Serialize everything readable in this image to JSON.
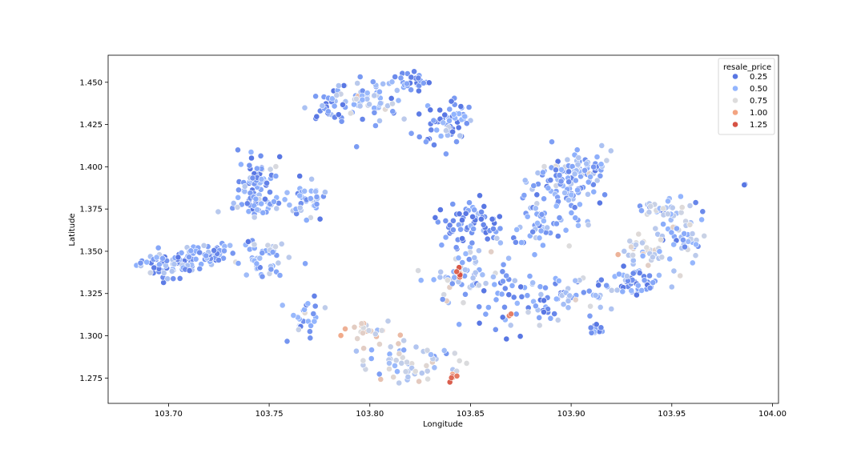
{
  "chart_data": {
    "type": "scatter",
    "xlabel": "Longitude",
    "ylabel": "Latitude",
    "xlim": [
      103.67,
      104.003
    ],
    "ylim": [
      1.26,
      1.466
    ],
    "xticks": [
      103.7,
      103.75,
      103.8,
      103.85,
      103.9,
      103.95,
      104.0
    ],
    "xtick_labels": [
      "103.70",
      "103.75",
      "103.80",
      "103.85",
      "103.90",
      "103.95",
      "104.00"
    ],
    "yticks": [
      1.275,
      1.3,
      1.325,
      1.35,
      1.375,
      1.4,
      1.425,
      1.45
    ],
    "ytick_labels": [
      "1.275",
      "1.300",
      "1.325",
      "1.350",
      "1.375",
      "1.400",
      "1.425",
      "1.450"
    ],
    "grid": false,
    "legend": {
      "title": "resale_price",
      "placement": "top-right",
      "entries": [
        {
          "label": "0.25",
          "value": 0.25,
          "color": "#5977e3"
        },
        {
          "label": "0.50",
          "value": 0.5,
          "color": "#93b5fe"
        },
        {
          "label": "0.75",
          "value": 0.75,
          "color": "#dddcdc"
        },
        {
          "label": "1.00",
          "value": 1.0,
          "color": "#f3a481"
        },
        {
          "label": "1.25",
          "value": 1.25,
          "color": "#d65244"
        }
      ]
    },
    "hue": "resale_price",
    "clusters": [
      {
        "center": [
          103.7,
          1.342
        ],
        "spread": [
          0.008,
          0.004
        ],
        "n": 70,
        "price": 0.42
      },
      {
        "center": [
          103.72,
          1.349
        ],
        "spread": [
          0.007,
          0.003
        ],
        "n": 45,
        "price": 0.45
      },
      {
        "center": [
          103.745,
          1.392
        ],
        "spread": [
          0.005,
          0.008
        ],
        "n": 55,
        "price": 0.4
      },
      {
        "center": [
          103.745,
          1.378
        ],
        "spread": [
          0.006,
          0.003
        ],
        "n": 35,
        "price": 0.45
      },
      {
        "center": [
          103.768,
          1.381
        ],
        "spread": [
          0.005,
          0.006
        ],
        "n": 40,
        "price": 0.48
      },
      {
        "center": [
          103.745,
          1.345
        ],
        "spread": [
          0.007,
          0.006
        ],
        "n": 45,
        "price": 0.5
      },
      {
        "center": [
          103.768,
          1.312
        ],
        "spread": [
          0.004,
          0.006
        ],
        "n": 25,
        "price": 0.48
      },
      {
        "center": [
          103.78,
          1.438
        ],
        "spread": [
          0.006,
          0.005
        ],
        "n": 30,
        "price": 0.4
      },
      {
        "center": [
          103.798,
          1.44
        ],
        "spread": [
          0.008,
          0.007
        ],
        "n": 60,
        "price": 0.5
      },
      {
        "center": [
          103.822,
          1.45
        ],
        "spread": [
          0.006,
          0.003
        ],
        "n": 30,
        "price": 0.38
      },
      {
        "center": [
          103.838,
          1.428
        ],
        "spread": [
          0.007,
          0.007
        ],
        "n": 60,
        "price": 0.38
      },
      {
        "center": [
          103.82,
          1.283
        ],
        "spread": [
          0.012,
          0.006
        ],
        "n": 60,
        "price": 0.6
      },
      {
        "center": [
          103.798,
          1.304
        ],
        "spread": [
          0.008,
          0.004
        ],
        "n": 25,
        "price": 0.78
      },
      {
        "center": [
          103.848,
          1.367
        ],
        "spread": [
          0.008,
          0.007
        ],
        "n": 65,
        "price": 0.32
      },
      {
        "center": [
          103.848,
          1.335
        ],
        "spread": [
          0.008,
          0.009
        ],
        "n": 60,
        "price": 0.55
      },
      {
        "center": [
          103.87,
          1.32
        ],
        "spread": [
          0.009,
          0.01
        ],
        "n": 45,
        "price": 0.45
      },
      {
        "center": [
          103.895,
          1.39
        ],
        "spread": [
          0.008,
          0.009
        ],
        "n": 80,
        "price": 0.45
      },
      {
        "center": [
          103.91,
          1.398
        ],
        "spread": [
          0.006,
          0.005
        ],
        "n": 40,
        "price": 0.47
      },
      {
        "center": [
          103.885,
          1.365
        ],
        "spread": [
          0.009,
          0.008
        ],
        "n": 55,
        "price": 0.45
      },
      {
        "center": [
          103.888,
          1.322
        ],
        "spread": [
          0.005,
          0.006
        ],
        "n": 20,
        "price": 0.35
      },
      {
        "center": [
          103.905,
          1.325
        ],
        "spread": [
          0.008,
          0.005
        ],
        "n": 30,
        "price": 0.55
      },
      {
        "center": [
          103.93,
          1.33
        ],
        "spread": [
          0.007,
          0.004
        ],
        "n": 50,
        "price": 0.35
      },
      {
        "center": [
          103.933,
          1.352
        ],
        "spread": [
          0.005,
          0.004
        ],
        "n": 35,
        "price": 0.62
      },
      {
        "center": [
          103.955,
          1.36
        ],
        "spread": [
          0.007,
          0.01
        ],
        "n": 60,
        "price": 0.55
      },
      {
        "center": [
          103.943,
          1.375
        ],
        "spread": [
          0.005,
          0.003
        ],
        "n": 20,
        "price": 0.6
      },
      {
        "center": [
          103.912,
          1.304
        ],
        "spread": [
          0.004,
          0.002
        ],
        "n": 12,
        "price": 0.38
      },
      {
        "center": [
          103.842,
          1.276
        ],
        "spread": [
          0.002,
          0.002
        ],
        "n": 6,
        "price": 1.1
      },
      {
        "center": [
          103.843,
          1.337
        ],
        "spread": [
          0.002,
          0.002
        ],
        "n": 5,
        "price": 1.2
      },
      {
        "center": [
          103.87,
          1.313
        ],
        "spread": [
          0.001,
          0.001
        ],
        "n": 2,
        "price": 1.25
      },
      {
        "center": [
          103.987,
          1.389
        ],
        "spread": [
          0.0005,
          0.0005
        ],
        "n": 2,
        "price": 0.25
      }
    ]
  }
}
